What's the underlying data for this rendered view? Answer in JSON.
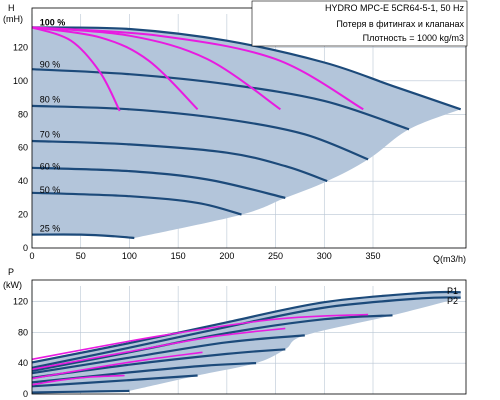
{
  "chart_data": [
    {
      "type": "line",
      "title": "HYDRO MPC-E 5CR64-5-1, 50 Hz",
      "notes": [
        "Потеря в фитингах и клапанах",
        "Плотность = 1000 kg/m3"
      ],
      "ylabel_top": "H",
      "ylabel_unit": "(mH)",
      "xlabel": "Q(m3/h)",
      "xlim": [
        0,
        470
      ],
      "ylim": [
        0,
        140
      ],
      "x_ticks": [
        "0",
        "50",
        "100",
        "150",
        "200",
        "250",
        "300",
        "350"
      ],
      "y_ticks": [
        "0",
        "20",
        "40",
        "60",
        "80",
        "100",
        "120"
      ],
      "grid": true,
      "colors": {
        "fill": "#b3c5da",
        "curve": "#1c4a7a",
        "system": "#e81be0",
        "grid": "#b9c6d4"
      },
      "speed_labels": [
        "100 %",
        "90 %",
        "80 %",
        "70 %",
        "60 %",
        "50 %",
        "25 %"
      ],
      "speed_curves": [
        {
          "name": "100 %",
          "label_x": 8,
          "label_y": 133,
          "points": [
            [
              0,
              132
            ],
            [
              100,
              131
            ],
            [
              200,
              124
            ],
            [
              300,
              111
            ],
            [
              370,
              97
            ],
            [
              440,
              83
            ]
          ]
        },
        {
          "name": "90 %",
          "label_x": 8,
          "label_y": 108,
          "points": [
            [
              0,
              107
            ],
            [
              100,
              104
            ],
            [
              200,
              98
            ],
            [
              300,
              88
            ],
            [
              387,
              71
            ]
          ]
        },
        {
          "name": "80 %",
          "label_x": 8,
          "label_y": 87,
          "points": [
            [
              0,
              85
            ],
            [
              100,
              83
            ],
            [
              200,
              77
            ],
            [
              280,
              68
            ],
            [
              345,
              53
            ]
          ]
        },
        {
          "name": "70 %",
          "label_x": 8,
          "label_y": 66,
          "points": [
            [
              0,
              64
            ],
            [
              100,
              62
            ],
            [
              200,
              57
            ],
            [
              260,
              49
            ],
            [
              303,
              40
            ]
          ]
        },
        {
          "name": "60 %",
          "label_x": 8,
          "label_y": 47,
          "points": [
            [
              0,
              48
            ],
            [
              100,
              46
            ],
            [
              180,
              41
            ],
            [
              260,
              30
            ]
          ]
        },
        {
          "name": "50 %",
          "label_x": 8,
          "label_y": 33,
          "points": [
            [
              0,
              33
            ],
            [
              100,
              31
            ],
            [
              170,
              27
            ],
            [
              215,
              20
            ]
          ]
        },
        {
          "name": "25 %",
          "label_x": 8,
          "label_y": 10,
          "points": [
            [
              0,
              8
            ],
            [
              50,
              8
            ],
            [
              85,
              7
            ],
            [
              105,
              6
            ]
          ]
        }
      ],
      "system_curves": [
        {
          "points": [
            [
              0,
              132
            ],
            [
              40,
              124
            ],
            [
              70,
              105
            ],
            [
              90,
              82
            ]
          ]
        },
        {
          "points": [
            [
              0,
              132
            ],
            [
              70,
              126
            ],
            [
              120,
              112
            ],
            [
              170,
              83
            ]
          ]
        },
        {
          "points": [
            [
              0,
              132
            ],
            [
              100,
              127
            ],
            [
              180,
              113
            ],
            [
              255,
              83
            ]
          ]
        },
        {
          "points": [
            [
              0,
              132
            ],
            [
              130,
              127
            ],
            [
              250,
              113
            ],
            [
              340,
              83
            ]
          ]
        }
      ]
    },
    {
      "type": "line",
      "ylabel_top": "P",
      "ylabel_unit": "(kW)",
      "xlim": [
        0,
        470
      ],
      "ylim": [
        0,
        140
      ],
      "y_ticks": [
        "0",
        "40",
        "80",
        "120"
      ],
      "grid": true,
      "series_labels": [
        "P1",
        "P2"
      ],
      "power_curves": [
        {
          "name": "P1",
          "points": [
            [
              0,
              41
            ],
            [
              100,
              66
            ],
            [
              200,
              93
            ],
            [
              300,
              119
            ],
            [
              400,
              131
            ],
            [
              440,
              132
            ]
          ]
        },
        {
          "name": "P2",
          "points": [
            [
              0,
              34
            ],
            [
              100,
              60
            ],
            [
              200,
              87
            ],
            [
              300,
              112
            ],
            [
              400,
              124
            ],
            [
              440,
              125
            ]
          ]
        },
        {
          "points": [
            [
              0,
              30
            ],
            [
              100,
              54
            ],
            [
              200,
              79
            ],
            [
              300,
              97
            ],
            [
              370,
              102
            ]
          ]
        },
        {
          "points": [
            [
              0,
              27
            ],
            [
              100,
              47
            ],
            [
              200,
              67
            ],
            [
              280,
              76
            ]
          ]
        },
        {
          "points": [
            [
              0,
              21
            ],
            [
              100,
              38
            ],
            [
              200,
              52
            ],
            [
              260,
              58
            ]
          ]
        },
        {
          "points": [
            [
              0,
              15
            ],
            [
              100,
              28
            ],
            [
              180,
              37
            ],
            [
              230,
              40
            ]
          ]
        },
        {
          "points": [
            [
              0,
              10
            ],
            [
              100,
              18
            ],
            [
              170,
              24
            ]
          ]
        },
        {
          "points": [
            [
              0,
              2
            ],
            [
              50,
              3
            ],
            [
              100,
              4
            ]
          ]
        }
      ],
      "system_power_curves": [
        {
          "points": [
            [
              0,
              12
            ],
            [
              30,
              18
            ],
            [
              60,
              22
            ],
            [
              95,
              24
            ]
          ]
        },
        {
          "points": [
            [
              0,
              20
            ],
            [
              60,
              33
            ],
            [
              120,
              45
            ],
            [
              175,
              54
            ]
          ]
        },
        {
          "points": [
            [
              0,
              32
            ],
            [
              100,
              55
            ],
            [
              190,
              75
            ],
            [
              260,
              85
            ]
          ]
        },
        {
          "points": [
            [
              0,
              45
            ],
            [
              130,
              75
            ],
            [
              250,
              97
            ],
            [
              345,
              103
            ]
          ]
        }
      ]
    }
  ]
}
